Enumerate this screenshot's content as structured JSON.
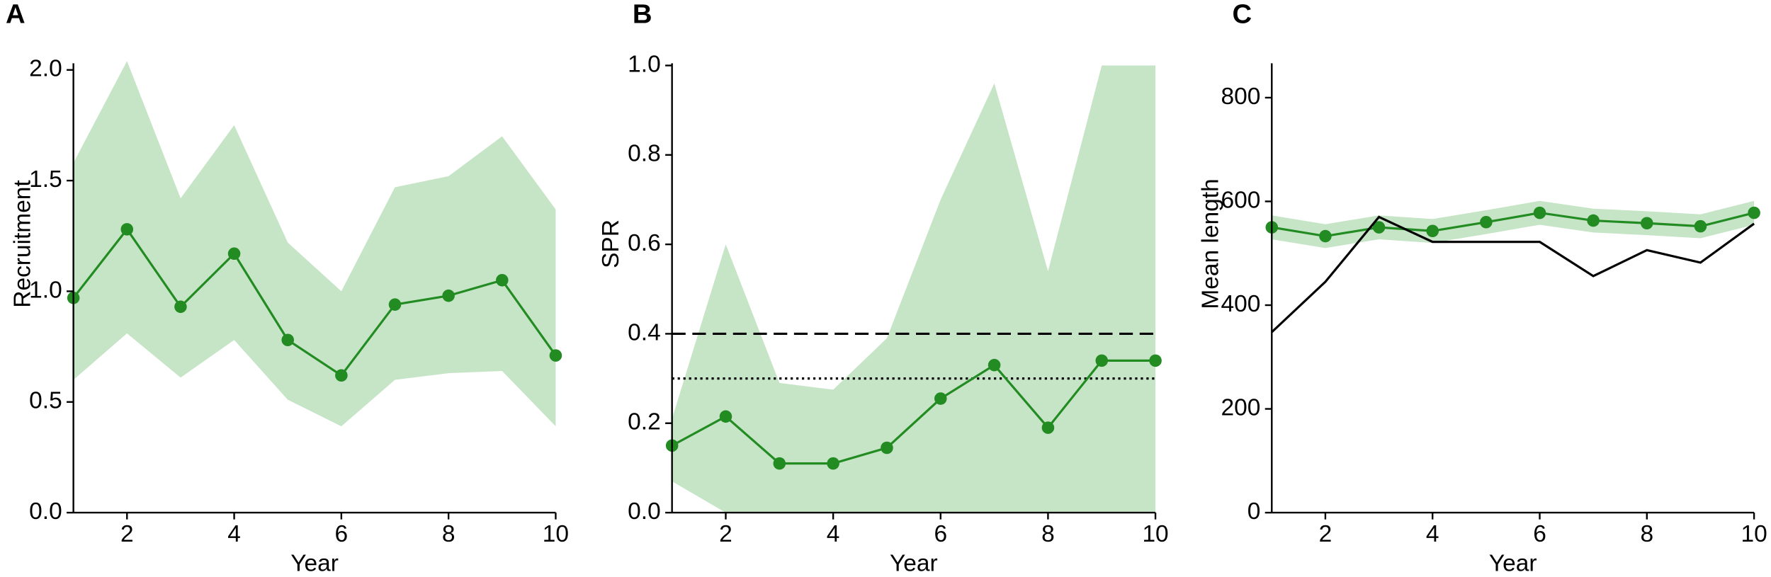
{
  "chart_data": [
    {
      "type": "line",
      "panel": "A",
      "xlabel": "Year",
      "ylabel": "Recruitment",
      "x": [
        1,
        2,
        3,
        4,
        5,
        6,
        7,
        8,
        9,
        10
      ],
      "xlim": [
        1,
        10
      ],
      "xticks": [
        2,
        4,
        6,
        8,
        10
      ],
      "ylim": [
        0,
        2.02
      ],
      "yticks": [
        {
          "value": 0,
          "label": "0.0"
        },
        {
          "value": 0.5,
          "label": "0.5"
        },
        {
          "value": 1,
          "label": "1.0"
        },
        {
          "value": 1.5,
          "label": "1.5"
        },
        {
          "value": 2,
          "label": "2.0"
        }
      ],
      "band": {
        "color": "#c6e4c6",
        "lower": [
          0.6,
          0.81,
          0.61,
          0.78,
          0.51,
          0.39,
          0.6,
          0.63,
          0.64,
          0.39
        ],
        "upper": [
          1.58,
          2.04,
          1.42,
          1.75,
          1.22,
          1.0,
          1.47,
          1.52,
          1.7,
          1.37
        ]
      },
      "series": [
        {
          "color": "#228b22",
          "markers": true,
          "values": [
            0.97,
            1.28,
            0.93,
            1.17,
            0.78,
            0.62,
            0.94,
            0.98,
            1.05,
            0.71
          ]
        }
      ]
    },
    {
      "type": "line",
      "panel": "B",
      "xlabel": "Year",
      "ylabel": "SPR",
      "x": [
        1,
        2,
        3,
        4,
        5,
        6,
        7,
        8,
        9,
        10
      ],
      "xlim": [
        1,
        10
      ],
      "xticks": [
        2,
        4,
        6,
        8,
        10
      ],
      "ylim": [
        0,
        1
      ],
      "yticks": [
        {
          "value": 0,
          "label": "0.0"
        },
        {
          "value": 0.2,
          "label": "0.2"
        },
        {
          "value": 0.4,
          "label": "0.4"
        },
        {
          "value": 0.6,
          "label": "0.6"
        },
        {
          "value": 0.8,
          "label": "0.8"
        },
        {
          "value": 1,
          "label": "1.0"
        }
      ],
      "band": {
        "color": "#c6e4c6",
        "lower": [
          0.07,
          0,
          0,
          0,
          0,
          0,
          0,
          0,
          0,
          0
        ],
        "upper": [
          0.21,
          0.6,
          0.29,
          0.275,
          0.39,
          0.7,
          0.96,
          0.54,
          1.0,
          1.0
        ]
      },
      "reference_lines": [
        {
          "value": 0.4,
          "style": "dashed"
        },
        {
          "value": 0.3,
          "style": "dotted"
        }
      ],
      "series": [
        {
          "color": "#228b22",
          "markers": true,
          "values": [
            0.15,
            0.215,
            0.11,
            0.11,
            0.145,
            0.255,
            0.33,
            0.19,
            0.34,
            0.34
          ]
        }
      ]
    },
    {
      "type": "line",
      "panel": "C",
      "xlabel": "Year",
      "ylabel": "Mean length",
      "x": [
        1,
        2,
        3,
        4,
        5,
        6,
        7,
        8,
        9,
        10
      ],
      "xlim": [
        1,
        10
      ],
      "xticks": [
        2,
        4,
        6,
        8,
        10
      ],
      "ylim": [
        0,
        862
      ],
      "yticks": [
        0,
        200,
        400,
        600,
        800
      ],
      "band": {
        "color": "#c6e4c6",
        "lower": [
          527,
          510,
          527,
          520,
          537,
          555,
          540,
          535,
          529,
          555
        ],
        "upper": [
          573,
          556,
          573,
          566,
          583,
          601,
          586,
          581,
          575,
          601
        ]
      },
      "series": [
        {
          "color": "#228b22",
          "markers": true,
          "values": [
            550,
            533,
            550,
            543,
            560,
            578,
            563,
            558,
            552,
            578
          ]
        },
        {
          "color": "#000000",
          "markers": false,
          "values": [
            348,
            445,
            570,
            522,
            522,
            522,
            456,
            506,
            482,
            557
          ]
        }
      ]
    }
  ]
}
